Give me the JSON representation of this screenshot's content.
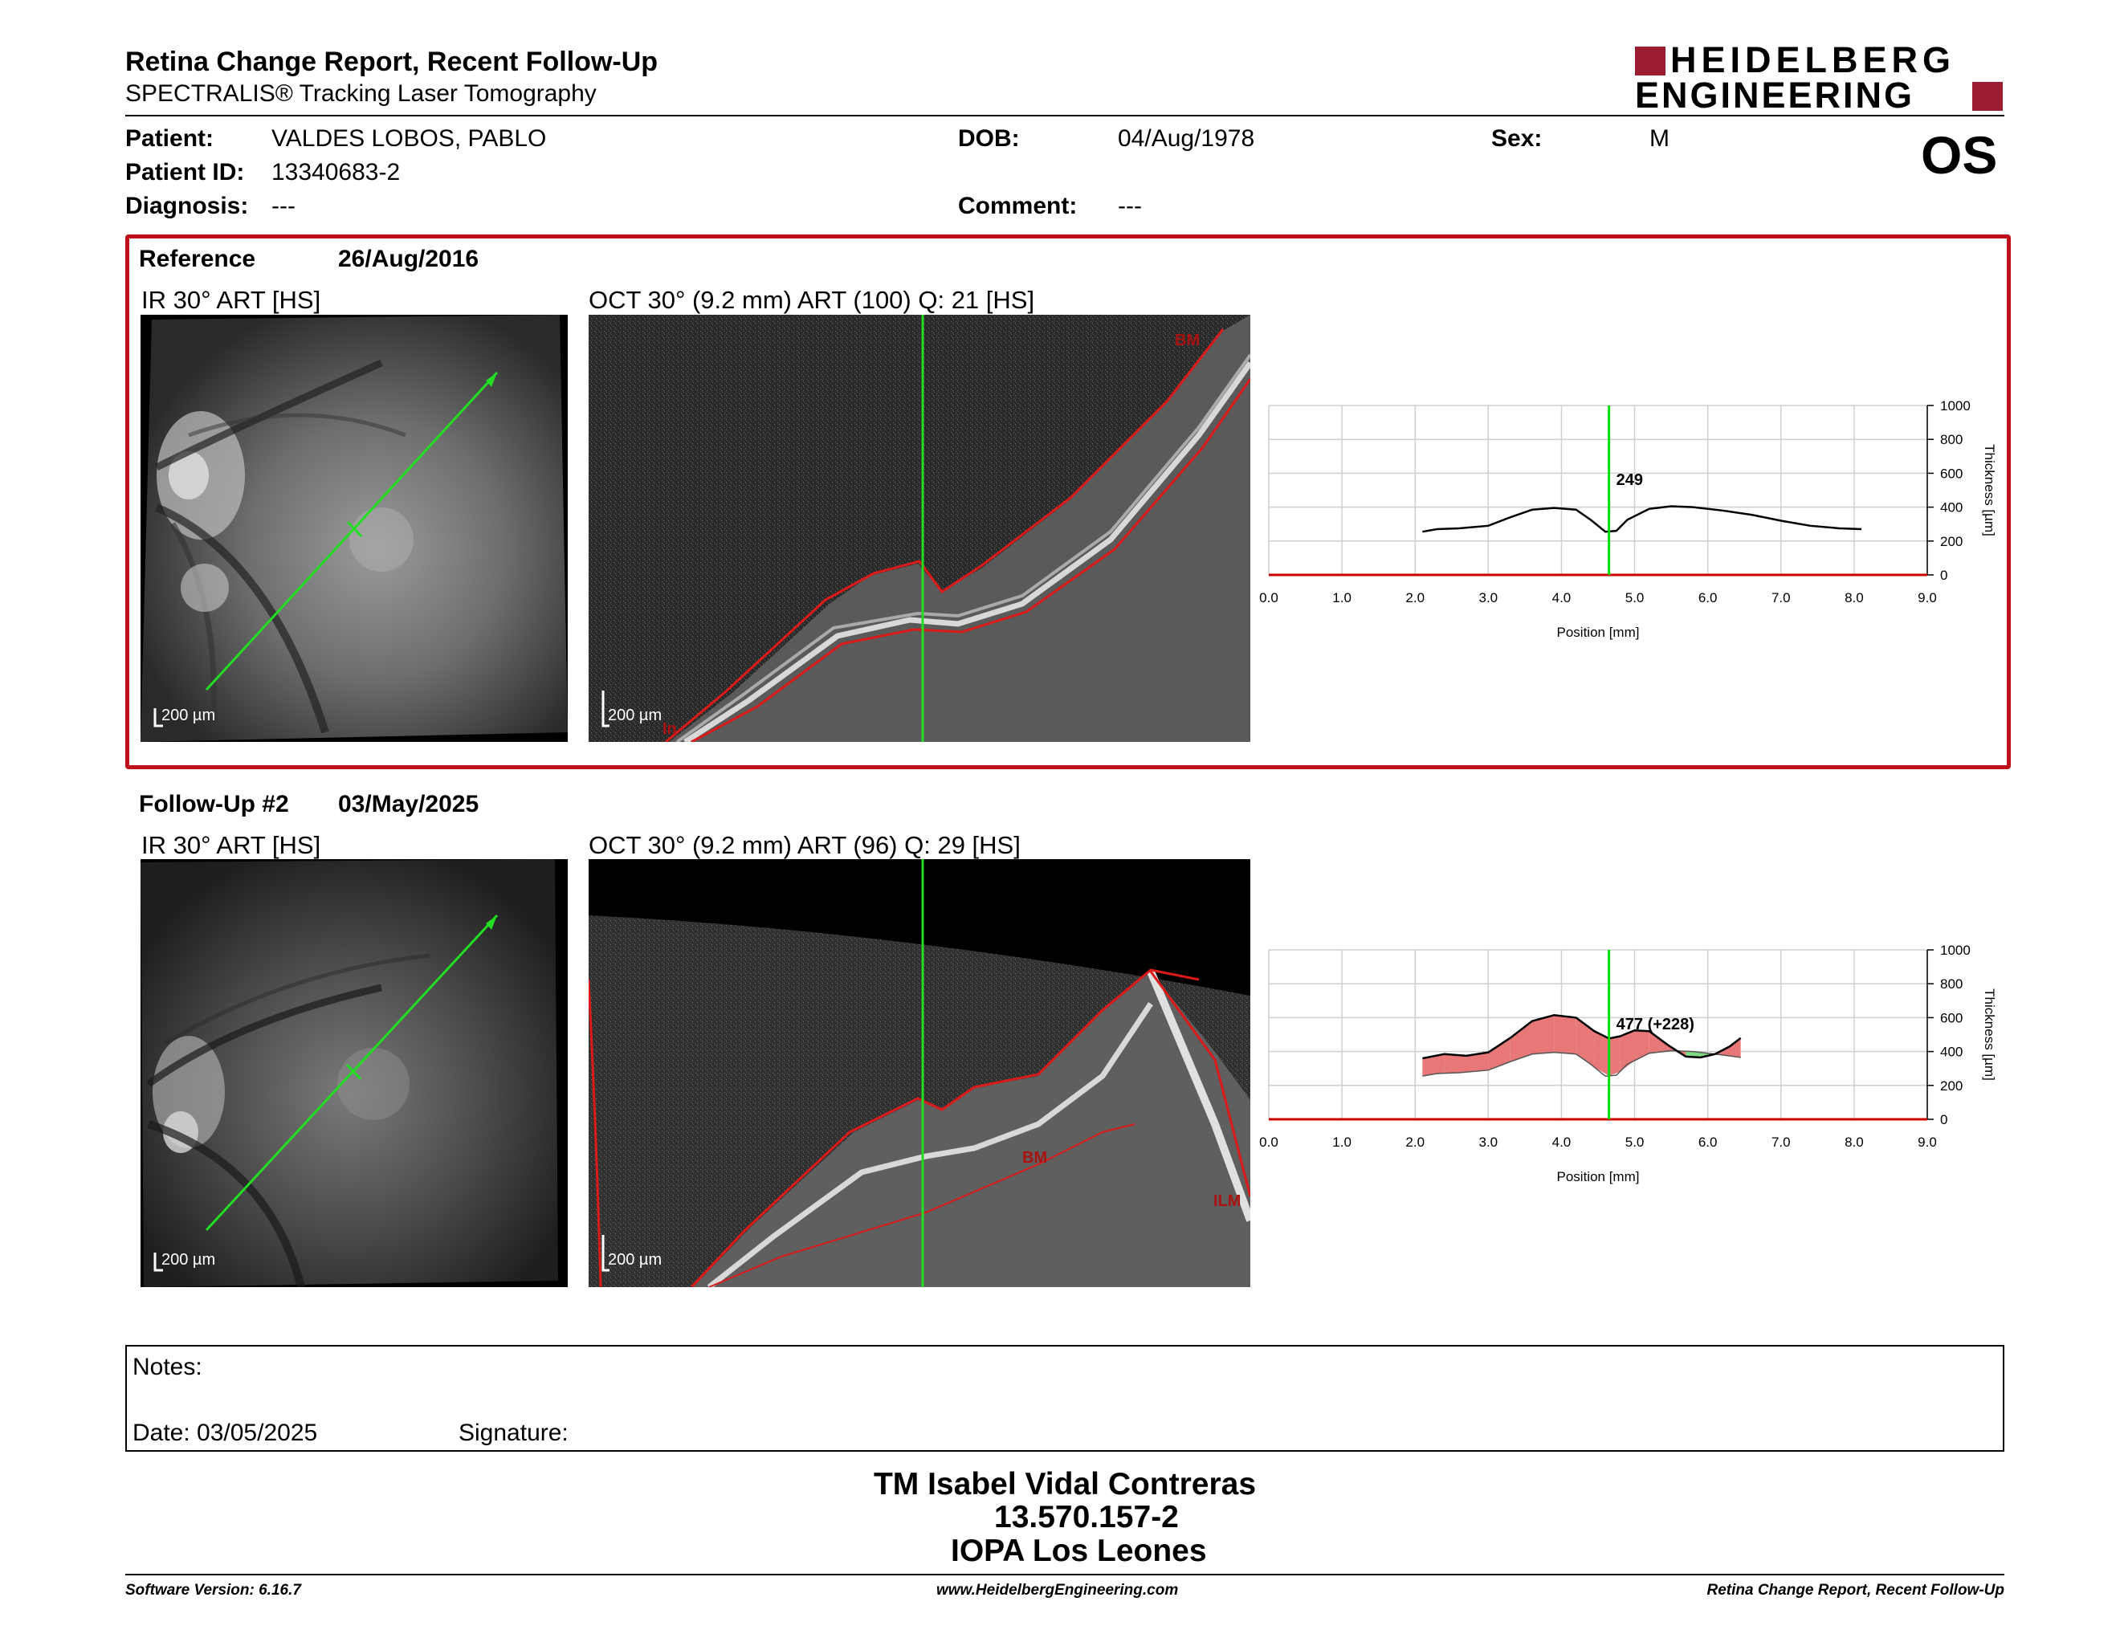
{
  "header": {
    "title": "Retina Change Report, Recent Follow-Up",
    "subtitle": "SPECTRALIS® Tracking Laser Tomography",
    "logo_line1": "HEIDELBERG",
    "logo_line2": "ENGINEERING",
    "eye": "OS"
  },
  "patient": {
    "patient_label": "Patient:",
    "patient_value": "VALDES LOBOS, PABLO",
    "id_label": "Patient ID:",
    "id_value": "13340683-2",
    "diagnosis_label": "Diagnosis:",
    "diagnosis_value": "---",
    "dob_label": "DOB:",
    "dob_value": "04/Aug/1978",
    "comment_label": "Comment:",
    "comment_value": "---",
    "sex_label": "Sex:",
    "sex_value": "M"
  },
  "reference": {
    "label": "Reference",
    "date": "26/Aug/2016",
    "ir_title": "IR 30° ART [HS]",
    "oct_title": "OCT 30° (9.2 mm) ART (100) Q: 21 [HS]",
    "ir_scale": "200 µm",
    "oct_scale": "200 µm",
    "oct_marker_top": "BM",
    "oct_marker_bottom": "In"
  },
  "followup": {
    "label": "Follow-Up #2",
    "date": "03/May/2025",
    "ir_title": "IR 30° ART [HS]",
    "oct_title": "OCT 30° (9.2 mm) ART (96) Q: 29 [HS]",
    "ir_scale": "200 µm",
    "oct_scale": "200 µm",
    "oct_marker_bm": "BM",
    "oct_marker_ilm": "ILM"
  },
  "chart_data": [
    {
      "type": "line",
      "xlabel": "Position [mm]",
      "ylabel": "Thickness [µm]",
      "xlim": [
        0,
        9
      ],
      "ylim": [
        0,
        1000
      ],
      "xticks": [
        "0.0",
        "1.0",
        "2.0",
        "3.0",
        "4.0",
        "5.0",
        "6.0",
        "7.0",
        "8.0",
        "9.0"
      ],
      "yticks": [
        "0",
        "200",
        "400",
        "600",
        "800",
        "1000"
      ],
      "cursor_x": 4.65,
      "cursor_label": "249",
      "series": [
        {
          "x": [
            2.1,
            2.3,
            2.6,
            3.0,
            3.3,
            3.6,
            3.9,
            4.2,
            4.4,
            4.6,
            4.75,
            4.9,
            5.2,
            5.5,
            5.8,
            6.2,
            6.6,
            7.0,
            7.4,
            7.8,
            8.1
          ],
          "y": [
            255,
            270,
            275,
            290,
            340,
            385,
            395,
            385,
            325,
            255,
            260,
            325,
            390,
            405,
            400,
            380,
            355,
            320,
            290,
            275,
            270
          ]
        }
      ],
      "grid": true,
      "colors": {
        "line": "#000000",
        "cursor": "#00dd00",
        "axis": "#cc0000"
      }
    },
    {
      "type": "area",
      "xlabel": "Position [mm]",
      "ylabel": "Thickness [µm]",
      "xlim": [
        0,
        9
      ],
      "ylim": [
        0,
        1000
      ],
      "xticks": [
        "0.0",
        "1.0",
        "2.0",
        "3.0",
        "4.0",
        "5.0",
        "6.0",
        "7.0",
        "8.0",
        "9.0"
      ],
      "yticks": [
        "0",
        "200",
        "400",
        "600",
        "800",
        "1000"
      ],
      "cursor_x": 4.65,
      "cursor_label": "477 (+228)",
      "series": [
        {
          "x": [
            2.1,
            2.4,
            2.7,
            3.0,
            3.3,
            3.6,
            3.9,
            4.2,
            4.45,
            4.65,
            4.8,
            5.0,
            5.2,
            5.45,
            5.7,
            5.9,
            6.1,
            6.3,
            6.45
          ],
          "y": [
            360,
            385,
            375,
            395,
            480,
            580,
            615,
            600,
            520,
            477,
            490,
            525,
            520,
            440,
            370,
            365,
            385,
            430,
            480
          ]
        },
        {
          "x": [
            2.1,
            2.3,
            2.6,
            3.0,
            3.3,
            3.6,
            3.9,
            4.2,
            4.4,
            4.6,
            4.75,
            4.9,
            5.2,
            5.5,
            5.8,
            6.2,
            6.45
          ],
          "y": [
            255,
            270,
            275,
            290,
            340,
            385,
            395,
            385,
            325,
            255,
            260,
            325,
            390,
            405,
            400,
            380,
            365
          ]
        }
      ],
      "grid": true,
      "colors": {
        "line": "#000000",
        "cursor": "#00dd00",
        "axis": "#cc0000",
        "increase": "#e87878",
        "decrease": "#7fd97f"
      }
    }
  ],
  "notes": {
    "notes_label": "Notes:",
    "date_label": "Date: 03/05/2025",
    "signature_label": "Signature:"
  },
  "signature": {
    "name": "TM Isabel Vidal Contreras",
    "rut": "13.570.157-2",
    "place": "IOPA Los Leones"
  },
  "footer": {
    "left": "Software Version: 6.16.7",
    "center": "www.HeidelbergEngineering.com",
    "right": "Retina Change Report, Recent Follow-Up"
  }
}
